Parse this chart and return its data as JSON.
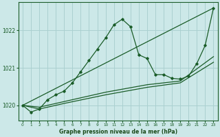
{
  "title": "Graphe pression niveau de la mer (hPa)",
  "bg_color": "#cce8e8",
  "grid_color": "#aad0d0",
  "line_color": "#1a5c28",
  "xlabel_color": "#1a4a1a",
  "xlim": [
    -0.5,
    23.5
  ],
  "ylim": [
    1019.6,
    1022.75
  ],
  "yticks": [
    1020,
    1021,
    1022
  ],
  "xticks": [
    0,
    1,
    2,
    3,
    4,
    5,
    6,
    7,
    8,
    9,
    10,
    11,
    12,
    13,
    14,
    15,
    16,
    17,
    18,
    19,
    20,
    21,
    22,
    23
  ],
  "series_main": {
    "x": [
      0,
      1,
      2,
      3,
      4,
      5,
      6,
      7,
      8,
      9,
      10,
      11,
      12,
      13,
      14,
      15,
      16,
      17,
      18,
      19,
      20,
      21,
      22,
      23
    ],
    "y": [
      1020.0,
      1019.82,
      1019.9,
      1020.15,
      1020.28,
      1020.38,
      1020.6,
      1020.9,
      1021.2,
      1021.5,
      1021.8,
      1022.15,
      1022.3,
      1022.1,
      1021.35,
      1021.25,
      1020.82,
      1020.82,
      1020.72,
      1020.7,
      1020.78,
      1021.12,
      1021.6,
      1022.6
    ]
  },
  "series_line1": {
    "x": [
      0,
      23
    ],
    "y": [
      1020.0,
      1022.6
    ]
  },
  "series_line2": {
    "x": [
      0,
      2,
      5,
      10,
      15,
      19,
      23
    ],
    "y": [
      1020.0,
      1019.95,
      1020.1,
      1020.35,
      1020.55,
      1020.65,
      1021.3
    ]
  },
  "series_line3": {
    "x": [
      0,
      2,
      5,
      10,
      15,
      19,
      23
    ],
    "y": [
      1020.0,
      1019.9,
      1020.05,
      1020.28,
      1020.48,
      1020.6,
      1021.15
    ]
  }
}
